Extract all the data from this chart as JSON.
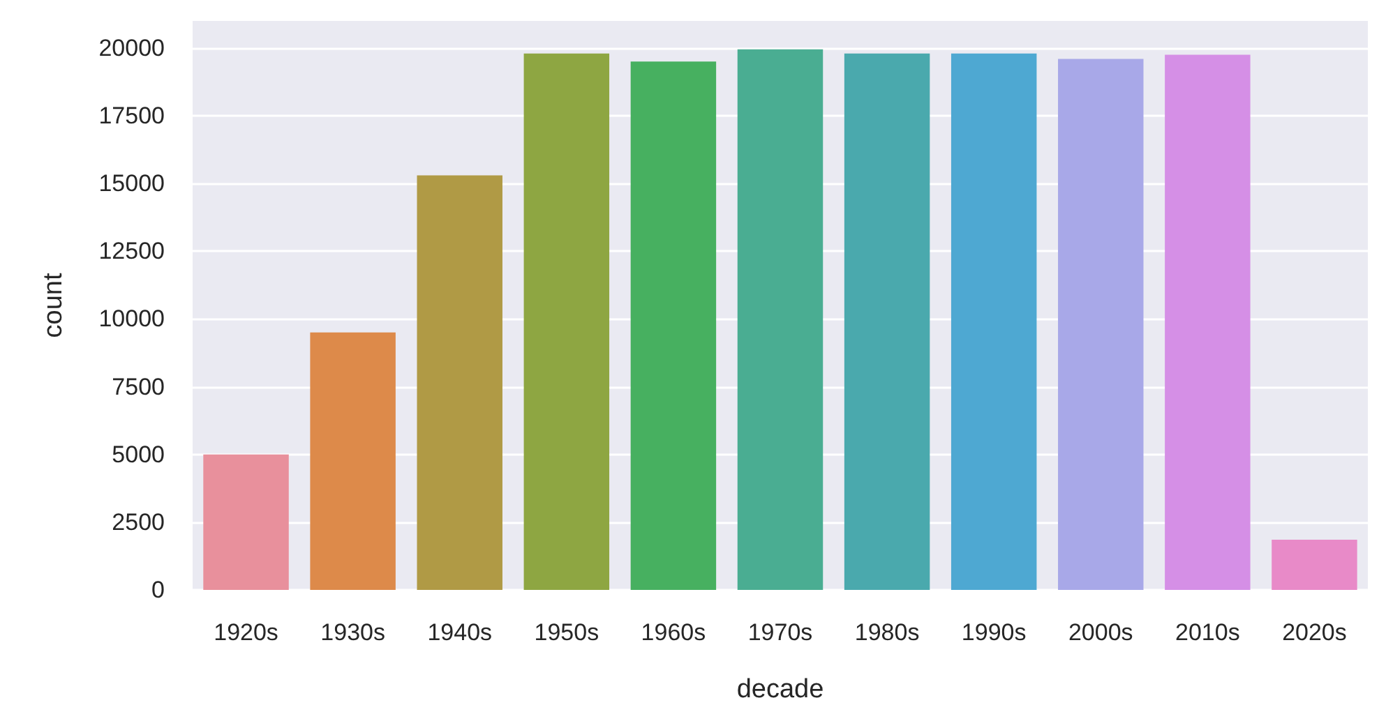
{
  "chart_data": {
    "type": "bar",
    "xlabel": "decade",
    "ylabel": "count",
    "categories": [
      "1920s",
      "1930s",
      "1940s",
      "1950s",
      "1960s",
      "1970s",
      "1980s",
      "1990s",
      "2000s",
      "2010s",
      "2020s"
    ],
    "values": [
      5000,
      9500,
      15300,
      19800,
      19500,
      19950,
      19800,
      19800,
      19600,
      19750,
      1850
    ],
    "colors": [
      "#e8909c",
      "#dd8a4a",
      "#b09a45",
      "#8ea642",
      "#47b060",
      "#4aad92",
      "#4aa9ad",
      "#4ea8d2",
      "#a8a8e8",
      "#d58fe6",
      "#e88ac8"
    ],
    "ylim": [
      0,
      21000
    ],
    "yticks": [
      0,
      2500,
      5000,
      7500,
      10000,
      12500,
      15000,
      17500,
      20000
    ],
    "grid": "y"
  }
}
